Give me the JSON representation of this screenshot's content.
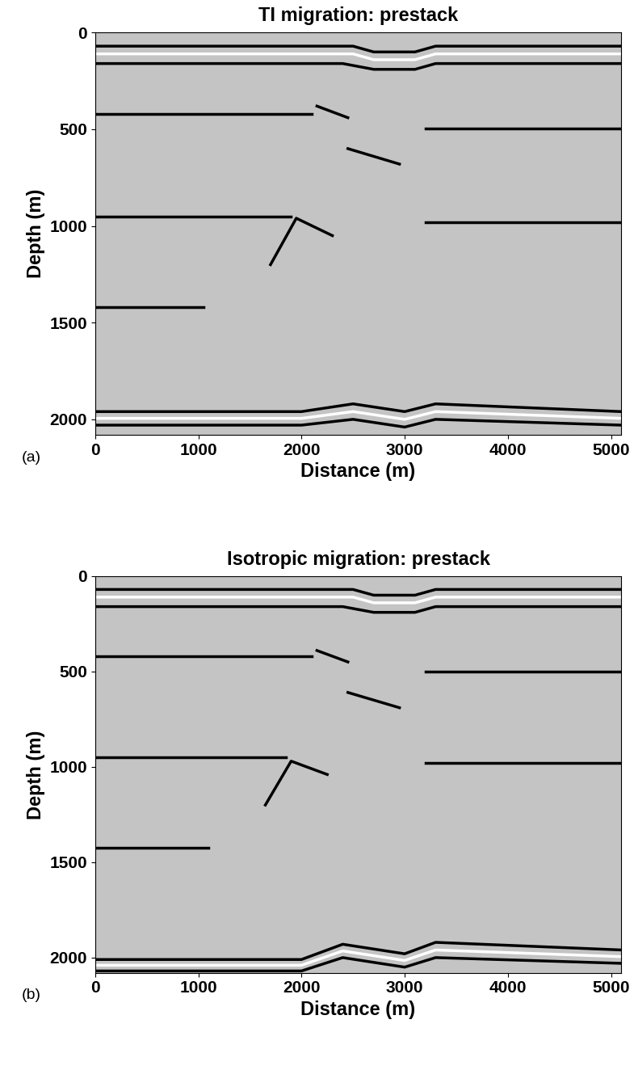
{
  "chart_data": [
    {
      "type": "image",
      "title": "TI migration: prestack",
      "annotation": "(a)",
      "x_label": "Distance (m)",
      "y_label": "Depth (m)",
      "xlim": [
        0,
        5100
      ],
      "ylim": [
        2080,
        0
      ],
      "xticks": [
        0,
        1000,
        2000,
        3000,
        4000,
        5000
      ],
      "yticks": [
        0,
        500,
        1000,
        1500,
        2000
      ],
      "events": [
        {
          "color": "black",
          "x": [
            0,
            2500,
            2700,
            3100,
            3300,
            5100
          ],
          "y": [
            70,
            70,
            100,
            100,
            70,
            70
          ]
        },
        {
          "color": "white",
          "x": [
            0,
            2500,
            2700,
            3100,
            3300,
            5100
          ],
          "y": [
            110,
            110,
            140,
            140,
            110,
            110
          ]
        },
        {
          "color": "black",
          "x": [
            0,
            2400,
            2700,
            3100,
            3300,
            5100
          ],
          "y": [
            160,
            160,
            190,
            190,
            160,
            160
          ]
        },
        {
          "color": "black",
          "x": [
            0,
            2100
          ],
          "y": [
            420,
            420
          ]
        },
        {
          "color": "black",
          "x": [
            3200,
            5100
          ],
          "y": [
            495,
            495
          ]
        },
        {
          "color": "black",
          "x": [
            2150,
            2450
          ],
          "y": [
            380,
            440
          ]
        },
        {
          "color": "black",
          "x": [
            2450,
            2950
          ],
          "y": [
            600,
            680
          ]
        },
        {
          "color": "black",
          "x": [
            0,
            1900
          ],
          "y": [
            950,
            950
          ]
        },
        {
          "color": "black",
          "x": [
            3200,
            5100
          ],
          "y": [
            980,
            980
          ]
        },
        {
          "color": "black",
          "x": [
            1700,
            1950,
            2300
          ],
          "y": [
            1200,
            960,
            1050
          ]
        },
        {
          "color": "black",
          "x": [
            0,
            1050
          ],
          "y": [
            1420,
            1420
          ]
        },
        {
          "color": "black",
          "x": [
            0,
            2000,
            2500,
            3000,
            3300,
            5100
          ],
          "y": [
            1960,
            1960,
            1920,
            1960,
            1920,
            1960
          ]
        },
        {
          "color": "white",
          "x": [
            0,
            2000,
            2500,
            3000,
            3300,
            5100
          ],
          "y": [
            1995,
            1995,
            1960,
            2000,
            1960,
            1995
          ]
        },
        {
          "color": "black",
          "x": [
            0,
            2000,
            2500,
            3000,
            3300,
            5100
          ],
          "y": [
            2030,
            2030,
            2000,
            2040,
            2000,
            2030
          ]
        }
      ]
    },
    {
      "type": "image",
      "title": "Isotropic migration: prestack",
      "annotation": "(b)",
      "x_label": "Distance (m)",
      "y_label": "Depth (m)",
      "xlim": [
        0,
        5100
      ],
      "ylim": [
        2080,
        0
      ],
      "xticks": [
        0,
        1000,
        2000,
        3000,
        4000,
        5000
      ],
      "yticks": [
        0,
        500,
        1000,
        1500,
        2000
      ],
      "events": [
        {
          "color": "black",
          "x": [
            0,
            2500,
            2700,
            3100,
            3300,
            5100
          ],
          "y": [
            70,
            70,
            100,
            100,
            70,
            70
          ]
        },
        {
          "color": "white",
          "x": [
            0,
            2500,
            2700,
            3100,
            3300,
            5100
          ],
          "y": [
            110,
            110,
            140,
            140,
            110,
            110
          ]
        },
        {
          "color": "black",
          "x": [
            0,
            2400,
            2700,
            3100,
            3300,
            5100
          ],
          "y": [
            160,
            160,
            190,
            190,
            160,
            160
          ]
        },
        {
          "color": "black",
          "x": [
            0,
            2100
          ],
          "y": [
            420,
            420
          ]
        },
        {
          "color": "black",
          "x": [
            3200,
            5100
          ],
          "y": [
            500,
            500
          ]
        },
        {
          "color": "black",
          "x": [
            2150,
            2450
          ],
          "y": [
            390,
            450
          ]
        },
        {
          "color": "black",
          "x": [
            2450,
            2950
          ],
          "y": [
            610,
            690
          ]
        },
        {
          "color": "black",
          "x": [
            0,
            1850
          ],
          "y": [
            950,
            950
          ]
        },
        {
          "color": "black",
          "x": [
            3200,
            5100
          ],
          "y": [
            980,
            980
          ]
        },
        {
          "color": "black",
          "x": [
            1650,
            1900,
            2250
          ],
          "y": [
            1200,
            970,
            1040
          ]
        },
        {
          "color": "black",
          "x": [
            0,
            1100
          ],
          "y": [
            1425,
            1425
          ]
        },
        {
          "color": "black",
          "x": [
            0,
            2000,
            2400,
            3000,
            3300,
            5100
          ],
          "y": [
            2010,
            2010,
            1930,
            1980,
            1920,
            1960
          ]
        },
        {
          "color": "white",
          "x": [
            0,
            2000,
            2400,
            3000,
            3300,
            5100
          ],
          "y": [
            2040,
            2040,
            1965,
            2015,
            1960,
            1995
          ]
        },
        {
          "color": "black",
          "x": [
            0,
            2000,
            2400,
            3000,
            3300,
            5100
          ],
          "y": [
            2070,
            2070,
            2000,
            2050,
            2000,
            2030
          ]
        }
      ]
    }
  ]
}
